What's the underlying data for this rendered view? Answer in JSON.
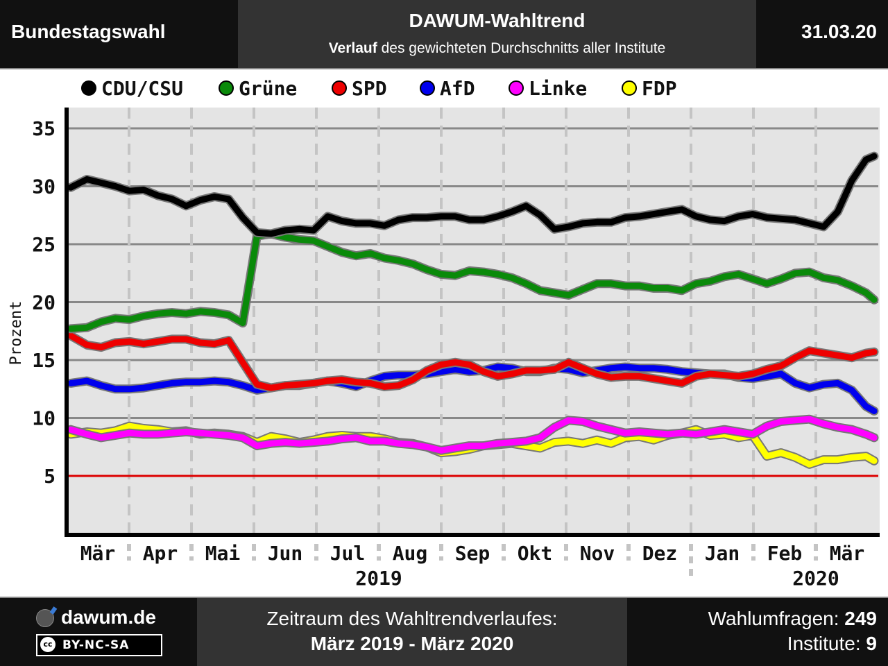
{
  "header": {
    "left": "Bundestagswahl",
    "title": "DAWUM-Wahltrend",
    "subtitle_bold": "Verlauf",
    "subtitle_rest": " des gewichteten Durchschnitts aller Institute",
    "date": "31.03.20"
  },
  "footer": {
    "brand": "dawum.de",
    "license": "BY-NC-SA",
    "cc": "cc",
    "period_label": "Zeitraum des Wahltrendverlaufes:",
    "period": "März 2019 - März 2020",
    "polls_label": "Wahlumfragen: ",
    "polls": "249",
    "institutes_label": "Institute: ",
    "institutes": "9"
  },
  "chart_data": {
    "type": "line",
    "ylabel": "Prozent",
    "ylim": [
      0,
      36
    ],
    "yticks": [
      5,
      10,
      15,
      20,
      25,
      30,
      35
    ],
    "threshold": 5,
    "threshold_color": "#dd0000",
    "grid": true,
    "legend_position": "top",
    "x_start": "2019-02-28",
    "x_end": "2020-03-31",
    "month_labels": [
      "Mär",
      "Apr",
      "Mai",
      "Jun",
      "Jul",
      "Aug",
      "Sep",
      "Okt",
      "Nov",
      "Dez",
      "Jan",
      "Feb",
      "Mär"
    ],
    "year_labels": [
      {
        "label": "2019",
        "under_month_index": 4.5
      },
      {
        "label": "2020",
        "under_month_index": 11.5
      }
    ],
    "series": [
      {
        "name": "CDU/CSU",
        "color": "#000000",
        "x": [
          "2019-02-28",
          "2019-03-08",
          "2019-03-15",
          "2019-03-22",
          "2019-03-29",
          "2019-04-05",
          "2019-04-12",
          "2019-04-19",
          "2019-04-26",
          "2019-05-03",
          "2019-05-10",
          "2019-05-17",
          "2019-05-24",
          "2019-05-31",
          "2019-06-07",
          "2019-06-14",
          "2019-06-21",
          "2019-06-28",
          "2019-07-05",
          "2019-07-12",
          "2019-07-19",
          "2019-07-26",
          "2019-08-02",
          "2019-08-09",
          "2019-08-16",
          "2019-08-23",
          "2019-08-30",
          "2019-09-06",
          "2019-09-13",
          "2019-09-20",
          "2019-09-27",
          "2019-10-04",
          "2019-10-11",
          "2019-10-18",
          "2019-10-25",
          "2019-11-01",
          "2019-11-08",
          "2019-11-15",
          "2019-11-22",
          "2019-11-29",
          "2019-12-06",
          "2019-12-13",
          "2019-12-20",
          "2019-12-27",
          "2020-01-03",
          "2020-01-10",
          "2020-01-17",
          "2020-01-24",
          "2020-01-31",
          "2020-02-07",
          "2020-02-14",
          "2020-02-21",
          "2020-02-28",
          "2020-03-06",
          "2020-03-13",
          "2020-03-20",
          "2020-03-27",
          "2020-03-31"
        ],
        "values": [
          29.9,
          30.6,
          30.3,
          30.0,
          29.6,
          29.7,
          29.2,
          28.9,
          28.3,
          28.8,
          29.1,
          28.9,
          27.3,
          26.0,
          25.9,
          26.2,
          26.3,
          26.2,
          27.4,
          27.0,
          26.8,
          26.8,
          26.6,
          27.1,
          27.3,
          27.3,
          27.4,
          27.4,
          27.1,
          27.1,
          27.4,
          27.8,
          28.3,
          27.5,
          26.3,
          26.5,
          26.8,
          26.9,
          26.9,
          27.3,
          27.4,
          27.6,
          27.8,
          28.0,
          27.4,
          27.1,
          27.0,
          27.4,
          27.6,
          27.3,
          27.2,
          27.1,
          26.8,
          26.5,
          27.8,
          30.5,
          32.3,
          32.6
        ]
      },
      {
        "name": "Grüne",
        "color": "#0a8a0a",
        "x": [
          "2019-02-28",
          "2019-03-08",
          "2019-03-15",
          "2019-03-22",
          "2019-03-29",
          "2019-04-05",
          "2019-04-12",
          "2019-04-19",
          "2019-04-26",
          "2019-05-03",
          "2019-05-10",
          "2019-05-17",
          "2019-05-24",
          "2019-05-31",
          "2019-06-07",
          "2019-06-14",
          "2019-06-21",
          "2019-06-28",
          "2019-07-05",
          "2019-07-12",
          "2019-07-19",
          "2019-07-26",
          "2019-08-02",
          "2019-08-09",
          "2019-08-16",
          "2019-08-23",
          "2019-08-30",
          "2019-09-06",
          "2019-09-13",
          "2019-09-20",
          "2019-09-27",
          "2019-10-04",
          "2019-10-11",
          "2019-10-18",
          "2019-10-25",
          "2019-11-01",
          "2019-11-08",
          "2019-11-15",
          "2019-11-22",
          "2019-11-29",
          "2019-12-06",
          "2019-12-13",
          "2019-12-20",
          "2019-12-27",
          "2020-01-03",
          "2020-01-10",
          "2020-01-17",
          "2020-01-24",
          "2020-01-31",
          "2020-02-07",
          "2020-02-14",
          "2020-02-21",
          "2020-02-28",
          "2020-03-06",
          "2020-03-13",
          "2020-03-20",
          "2020-03-27",
          "2020-03-31"
        ],
        "values": [
          17.7,
          17.8,
          18.3,
          18.6,
          18.5,
          18.8,
          19.0,
          19.1,
          19.0,
          19.2,
          19.1,
          18.9,
          18.2,
          25.7,
          25.9,
          25.6,
          25.4,
          25.3,
          24.8,
          24.3,
          24.0,
          24.2,
          23.8,
          23.6,
          23.3,
          22.8,
          22.4,
          22.3,
          22.7,
          22.6,
          22.4,
          22.1,
          21.6,
          21.0,
          20.8,
          20.6,
          21.1,
          21.6,
          21.6,
          21.4,
          21.4,
          21.2,
          21.2,
          21.0,
          21.6,
          21.8,
          22.2,
          22.4,
          22.0,
          21.6,
          22.0,
          22.5,
          22.6,
          22.1,
          21.9,
          21.4,
          20.8,
          20.2
        ]
      },
      {
        "name": "SPD",
        "color": "#ee0000",
        "x": [
          "2019-02-28",
          "2019-03-08",
          "2019-03-15",
          "2019-03-22",
          "2019-03-29",
          "2019-04-05",
          "2019-04-12",
          "2019-04-19",
          "2019-04-26",
          "2019-05-03",
          "2019-05-10",
          "2019-05-17",
          "2019-05-24",
          "2019-05-31",
          "2019-06-07",
          "2019-06-14",
          "2019-06-21",
          "2019-06-28",
          "2019-07-05",
          "2019-07-12",
          "2019-07-19",
          "2019-07-26",
          "2019-08-02",
          "2019-08-09",
          "2019-08-16",
          "2019-08-23",
          "2019-08-30",
          "2019-09-06",
          "2019-09-13",
          "2019-09-20",
          "2019-09-27",
          "2019-10-04",
          "2019-10-11",
          "2019-10-18",
          "2019-10-25",
          "2019-11-01",
          "2019-11-08",
          "2019-11-15",
          "2019-11-22",
          "2019-11-29",
          "2019-12-06",
          "2019-12-13",
          "2019-12-20",
          "2019-12-27",
          "2020-01-03",
          "2020-01-10",
          "2020-01-17",
          "2020-01-24",
          "2020-01-31",
          "2020-02-07",
          "2020-02-14",
          "2020-02-21",
          "2020-02-28",
          "2020-03-06",
          "2020-03-13",
          "2020-03-20",
          "2020-03-27",
          "2020-03-31"
        ],
        "values": [
          17.1,
          16.3,
          16.1,
          16.5,
          16.6,
          16.4,
          16.6,
          16.8,
          16.8,
          16.5,
          16.4,
          16.7,
          14.8,
          12.9,
          12.6,
          12.8,
          12.9,
          13.0,
          13.2,
          13.3,
          13.1,
          13.0,
          12.7,
          12.8,
          13.3,
          14.1,
          14.6,
          14.8,
          14.6,
          14.0,
          13.6,
          13.8,
          14.1,
          14.1,
          14.2,
          14.8,
          14.3,
          13.8,
          13.5,
          13.6,
          13.6,
          13.4,
          13.2,
          13.0,
          13.6,
          13.8,
          13.7,
          13.6,
          13.8,
          14.2,
          14.5,
          15.2,
          15.8,
          15.6,
          15.4,
          15.2,
          15.6,
          15.7
        ]
      },
      {
        "name": "AfD",
        "color": "#0000ee",
        "x": [
          "2019-02-28",
          "2019-03-08",
          "2019-03-15",
          "2019-03-22",
          "2019-03-29",
          "2019-04-05",
          "2019-04-12",
          "2019-04-19",
          "2019-04-26",
          "2019-05-03",
          "2019-05-10",
          "2019-05-17",
          "2019-05-24",
          "2019-05-31",
          "2019-06-07",
          "2019-06-14",
          "2019-06-21",
          "2019-06-28",
          "2019-07-05",
          "2019-07-12",
          "2019-07-19",
          "2019-07-26",
          "2019-08-02",
          "2019-08-09",
          "2019-08-16",
          "2019-08-23",
          "2019-08-30",
          "2019-09-06",
          "2019-09-13",
          "2019-09-20",
          "2019-09-27",
          "2019-10-04",
          "2019-10-11",
          "2019-10-18",
          "2019-10-25",
          "2019-11-01",
          "2019-11-08",
          "2019-11-15",
          "2019-11-22",
          "2019-11-29",
          "2019-12-06",
          "2019-12-13",
          "2019-12-20",
          "2019-12-27",
          "2020-01-03",
          "2020-01-10",
          "2020-01-17",
          "2020-01-24",
          "2020-01-31",
          "2020-02-07",
          "2020-02-14",
          "2020-02-21",
          "2020-02-28",
          "2020-03-06",
          "2020-03-13",
          "2020-03-20",
          "2020-03-27",
          "2020-03-31"
        ],
        "values": [
          13.0,
          13.2,
          12.8,
          12.5,
          12.5,
          12.6,
          12.8,
          13.0,
          13.1,
          13.1,
          13.2,
          13.1,
          12.8,
          12.4,
          12.6,
          12.8,
          12.8,
          13.0,
          13.2,
          13.0,
          12.7,
          13.2,
          13.6,
          13.7,
          13.7,
          13.8,
          14.0,
          14.2,
          14.0,
          14.1,
          14.4,
          14.3,
          14.0,
          14.0,
          14.3,
          14.2,
          13.9,
          14.1,
          14.3,
          14.4,
          14.3,
          14.3,
          14.2,
          14.0,
          13.9,
          13.8,
          13.8,
          13.5,
          13.4,
          13.6,
          13.8,
          13.0,
          12.6,
          12.9,
          13.0,
          12.4,
          11.0,
          10.6
        ]
      },
      {
        "name": "Linke",
        "color": "#ff00ff",
        "x": [
          "2019-02-28",
          "2019-03-08",
          "2019-03-15",
          "2019-03-22",
          "2019-03-29",
          "2019-04-05",
          "2019-04-12",
          "2019-04-19",
          "2019-04-26",
          "2019-05-03",
          "2019-05-10",
          "2019-05-17",
          "2019-05-24",
          "2019-05-31",
          "2019-06-07",
          "2019-06-14",
          "2019-06-21",
          "2019-06-28",
          "2019-07-05",
          "2019-07-12",
          "2019-07-19",
          "2019-07-26",
          "2019-08-02",
          "2019-08-09",
          "2019-08-16",
          "2019-08-23",
          "2019-08-30",
          "2019-09-06",
          "2019-09-13",
          "2019-09-20",
          "2019-09-27",
          "2019-10-04",
          "2019-10-11",
          "2019-10-18",
          "2019-10-25",
          "2019-11-01",
          "2019-11-08",
          "2019-11-15",
          "2019-11-22",
          "2019-11-29",
          "2019-12-06",
          "2019-12-13",
          "2019-12-20",
          "2019-12-27",
          "2020-01-03",
          "2020-01-10",
          "2020-01-17",
          "2020-01-24",
          "2020-01-31",
          "2020-02-07",
          "2020-02-14",
          "2020-02-21",
          "2020-02-28",
          "2020-03-06",
          "2020-03-13",
          "2020-03-20",
          "2020-03-27",
          "2020-03-31"
        ],
        "values": [
          9.0,
          8.6,
          8.3,
          8.5,
          8.7,
          8.6,
          8.6,
          8.7,
          8.8,
          8.7,
          8.6,
          8.5,
          8.3,
          7.6,
          7.8,
          7.9,
          7.8,
          7.9,
          8.0,
          8.2,
          8.3,
          8.0,
          8.0,
          7.8,
          7.7,
          7.5,
          7.2,
          7.4,
          7.6,
          7.6,
          7.8,
          7.9,
          8.0,
          8.3,
          9.2,
          9.8,
          9.7,
          9.3,
          9.0,
          8.7,
          8.8,
          8.7,
          8.6,
          8.7,
          8.6,
          8.8,
          9.0,
          8.8,
          8.6,
          9.3,
          9.7,
          9.8,
          9.9,
          9.5,
          9.2,
          9.0,
          8.6,
          8.3
        ]
      },
      {
        "name": "FDP",
        "color": "#ffff00",
        "x": [
          "2019-02-28",
          "2019-03-08",
          "2019-03-15",
          "2019-03-22",
          "2019-03-29",
          "2019-04-05",
          "2019-04-12",
          "2019-04-19",
          "2019-04-26",
          "2019-05-03",
          "2019-05-10",
          "2019-05-17",
          "2019-05-24",
          "2019-05-31",
          "2019-06-07",
          "2019-06-14",
          "2019-06-21",
          "2019-06-28",
          "2019-07-05",
          "2019-07-12",
          "2019-07-19",
          "2019-07-26",
          "2019-08-02",
          "2019-08-09",
          "2019-08-16",
          "2019-08-23",
          "2019-08-30",
          "2019-09-06",
          "2019-09-13",
          "2019-09-20",
          "2019-09-27",
          "2019-10-04",
          "2019-10-11",
          "2019-10-18",
          "2019-10-25",
          "2019-11-01",
          "2019-11-08",
          "2019-11-15",
          "2019-11-22",
          "2019-11-29",
          "2019-12-06",
          "2019-12-13",
          "2019-12-20",
          "2019-12-27",
          "2020-01-03",
          "2020-01-10",
          "2020-01-17",
          "2020-01-24",
          "2020-01-31",
          "2020-02-07",
          "2020-02-14",
          "2020-02-21",
          "2020-02-28",
          "2020-03-06",
          "2020-03-13",
          "2020-03-20",
          "2020-03-27",
          "2020-03-31"
        ],
        "values": [
          8.6,
          8.8,
          8.7,
          8.9,
          9.3,
          9.1,
          9.0,
          8.8,
          8.9,
          8.6,
          8.7,
          8.6,
          8.4,
          7.9,
          8.4,
          8.2,
          7.9,
          8.1,
          8.4,
          8.5,
          8.4,
          8.4,
          8.2,
          7.9,
          7.8,
          7.5,
          7.0,
          7.1,
          7.3,
          7.6,
          7.7,
          7.8,
          7.6,
          7.4,
          7.9,
          8.0,
          7.8,
          8.1,
          7.8,
          8.3,
          8.4,
          8.1,
          8.5,
          8.7,
          9.0,
          8.5,
          8.6,
          8.3,
          8.5,
          6.7,
          7.0,
          6.6,
          6.0,
          6.4,
          6.4,
          6.6,
          6.7,
          6.3
        ]
      }
    ]
  }
}
